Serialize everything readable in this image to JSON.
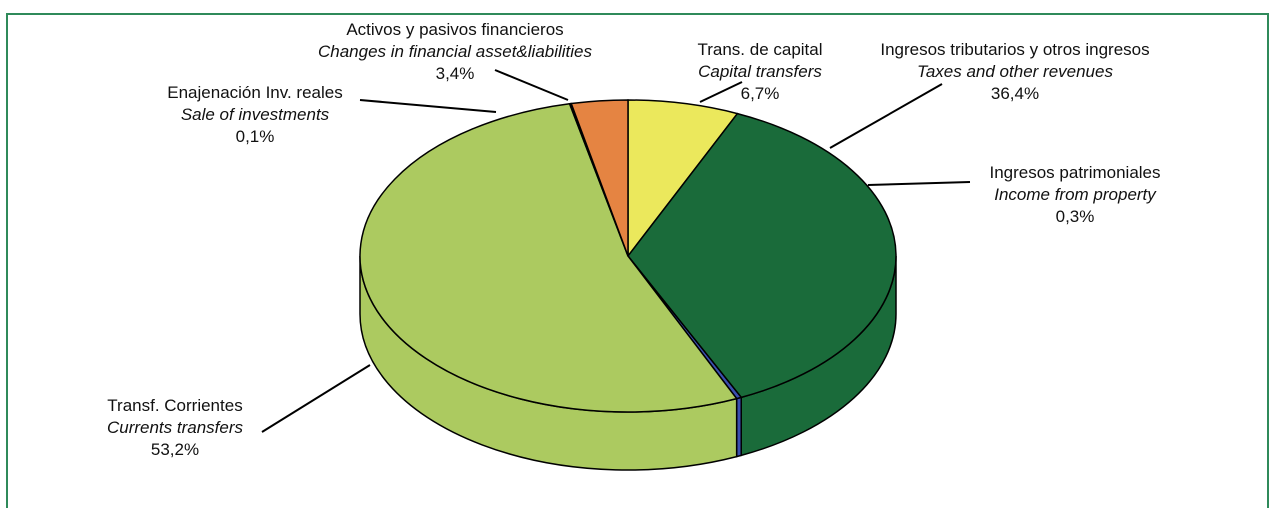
{
  "chart_data": {
    "type": "pie3d",
    "categories": [
      "Trans. de capital",
      "Ingresos tributarios y otros ingresos",
      "Ingresos patrimoniales",
      "Transf. Corrientes",
      "Enajenación Inv. reales",
      "Activos y pasivos financieros"
    ],
    "categories_en": [
      "Capital transfers",
      "Taxes and other revenues",
      "Income from property",
      "Currents transfers",
      "Sale of investments",
      "Changes in financial asset&liabilities"
    ],
    "values": [
      6.7,
      36.4,
      0.3,
      53.2,
      0.1,
      3.4
    ],
    "value_labels": [
      "6,7%",
      "36,4%",
      "0,3%",
      "53,2%",
      "0,1%",
      "3,4%"
    ],
    "colors": [
      "#ebe85c",
      "#1a6b3a",
      "#3b4fb0",
      "#acca60",
      "#111111",
      "#e58442"
    ]
  }
}
